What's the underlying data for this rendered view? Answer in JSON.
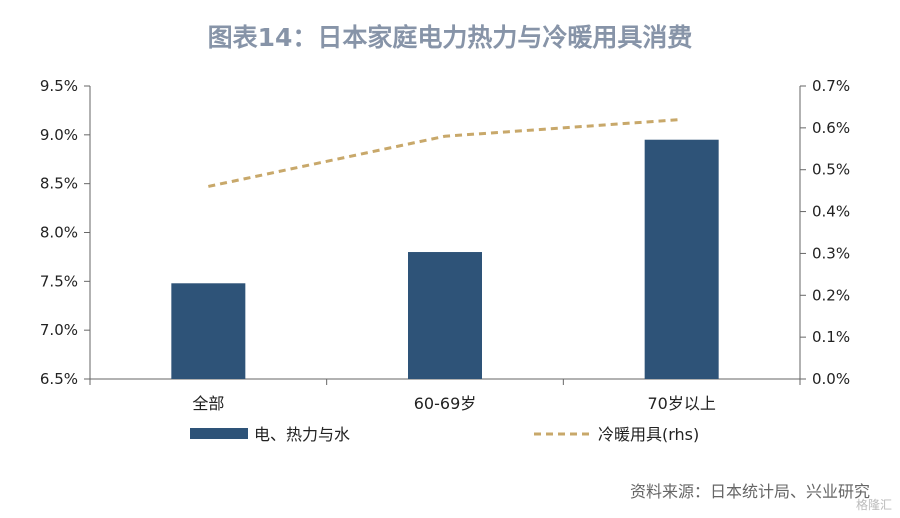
{
  "title": "图表14：日本家庭电力热力与冷暖用具消费",
  "source": "资料来源：日本统计局、兴业研究",
  "watermark": "格隆汇",
  "colors": {
    "bar": "#2e5378",
    "line": "#c8a86a",
    "axis": "#666666",
    "title": "#8794a8"
  },
  "chart_data": {
    "type": "bar",
    "categories": [
      "全部",
      "60-69岁",
      "70岁以上"
    ],
    "series": [
      {
        "name": "电、热力与水",
        "type": "bar",
        "axis": "left",
        "values": [
          7.48,
          7.8,
          8.95
        ]
      },
      {
        "name": "冷暖用具(rhs)",
        "type": "line",
        "style": "dashed",
        "axis": "right",
        "values": [
          0.46,
          0.58,
          0.62
        ]
      }
    ],
    "y_left": {
      "min": 6.5,
      "max": 9.5,
      "step": 0.5,
      "ticks": [
        "6.5%",
        "7.0%",
        "7.5%",
        "8.0%",
        "8.5%",
        "9.0%",
        "9.5%"
      ]
    },
    "y_right": {
      "min": 0.0,
      "max": 0.7,
      "step": 0.1,
      "ticks": [
        "0.0%",
        "0.1%",
        "0.2%",
        "0.3%",
        "0.4%",
        "0.5%",
        "0.6%",
        "0.7%"
      ]
    },
    "grid": false,
    "legend_position": "bottom"
  }
}
